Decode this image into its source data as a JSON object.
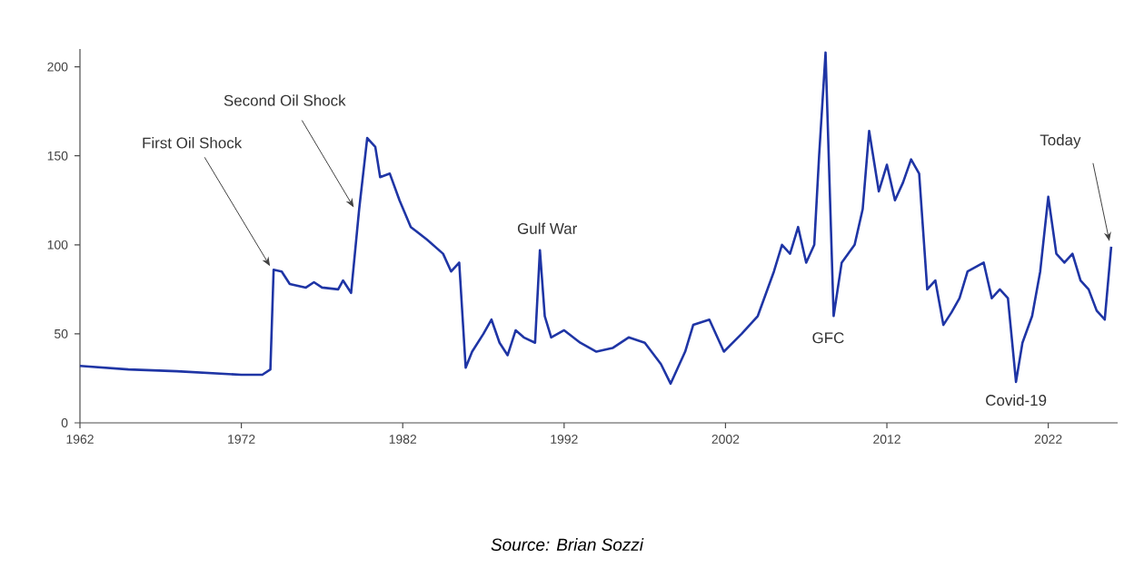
{
  "chart_data": {
    "type": "line",
    "xlim": [
      1962,
      2026.3
    ],
    "ylim": [
      0,
      210
    ],
    "xticks": [
      1962,
      1972,
      1982,
      1992,
      2002,
      2012,
      2022
    ],
    "yticks": [
      0,
      50,
      100,
      150,
      200
    ],
    "grid": false,
    "marker": "none",
    "line_style": "solid",
    "series": [
      {
        "color": "#1f35a5",
        "x": [
          1962,
          1965,
          1968,
          1970,
          1972,
          1973.3,
          1973.8,
          1974.0,
          1974.5,
          1975,
          1976,
          1976.5,
          1977,
          1978,
          1978.3,
          1978.8,
          1979.3,
          1979.8,
          1980.3,
          1980.6,
          1981.2,
          1981.8,
          1982.5,
          1983.5,
          1984.5,
          1985,
          1985.5,
          1985.9,
          1986.3,
          1987,
          1987.5,
          1988,
          1988.5,
          1989,
          1989.5,
          1990.2,
          1990.5,
          1990.8,
          1991.2,
          1992,
          1993,
          1994,
          1995,
          1996,
          1997,
          1998,
          1998.6,
          1999.5,
          2000,
          2001,
          2001.9,
          2003,
          2004,
          2005,
          2005.5,
          2006,
          2006.5,
          2007,
          2007.5,
          2007.8,
          2008.2,
          2008.7,
          2009.2,
          2010,
          2010.5,
          2010.9,
          2011.5,
          2012,
          2012.5,
          2013,
          2013.5,
          2014,
          2014.5,
          2015,
          2015.5,
          2016,
          2016.5,
          2017,
          2018,
          2018.5,
          2019,
          2019.5,
          2020.0,
          2020.4,
          2021,
          2021.5,
          2022.0,
          2022.5,
          2023,
          2023.5,
          2024,
          2024.5,
          2025,
          2025.5,
          2025.9
        ],
        "values": [
          32,
          30,
          29,
          28,
          27,
          27,
          30,
          86,
          85,
          78,
          76,
          79,
          76,
          75,
          80,
          73,
          120,
          160,
          155,
          138,
          140,
          125,
          110,
          103,
          95,
          85,
          90,
          31,
          40,
          50,
          58,
          45,
          38,
          52,
          48,
          45,
          97,
          60,
          48,
          52,
          45,
          40,
          42,
          48,
          45,
          33,
          22,
          40,
          55,
          58,
          40,
          50,
          60,
          85,
          100,
          95,
          110,
          90,
          100,
          150,
          208,
          60,
          90,
          100,
          120,
          164,
          130,
          145,
          125,
          135,
          148,
          140,
          75,
          80,
          55,
          62,
          70,
          85,
          90,
          70,
          75,
          70,
          23,
          45,
          60,
          85,
          127,
          95,
          90,
          95,
          80,
          75,
          63,
          58,
          99
        ]
      }
    ],
    "annotations": [
      {
        "text": "First Oil Shock",
        "x": 1974.0,
        "y": 86
      },
      {
        "text": "Second Oil Shock",
        "x": 1979.3,
        "y": 120
      },
      {
        "text": "Gulf War",
        "x": 1990.5,
        "y": 97
      },
      {
        "text": "GFC",
        "x": 2008.7,
        "y": 60
      },
      {
        "text": "Covid-19",
        "x": 2020.0,
        "y": 23
      },
      {
        "text": "Today",
        "x": 2025.9,
        "y": 99
      },
      "Source: Brian Sozzi"
    ]
  }
}
